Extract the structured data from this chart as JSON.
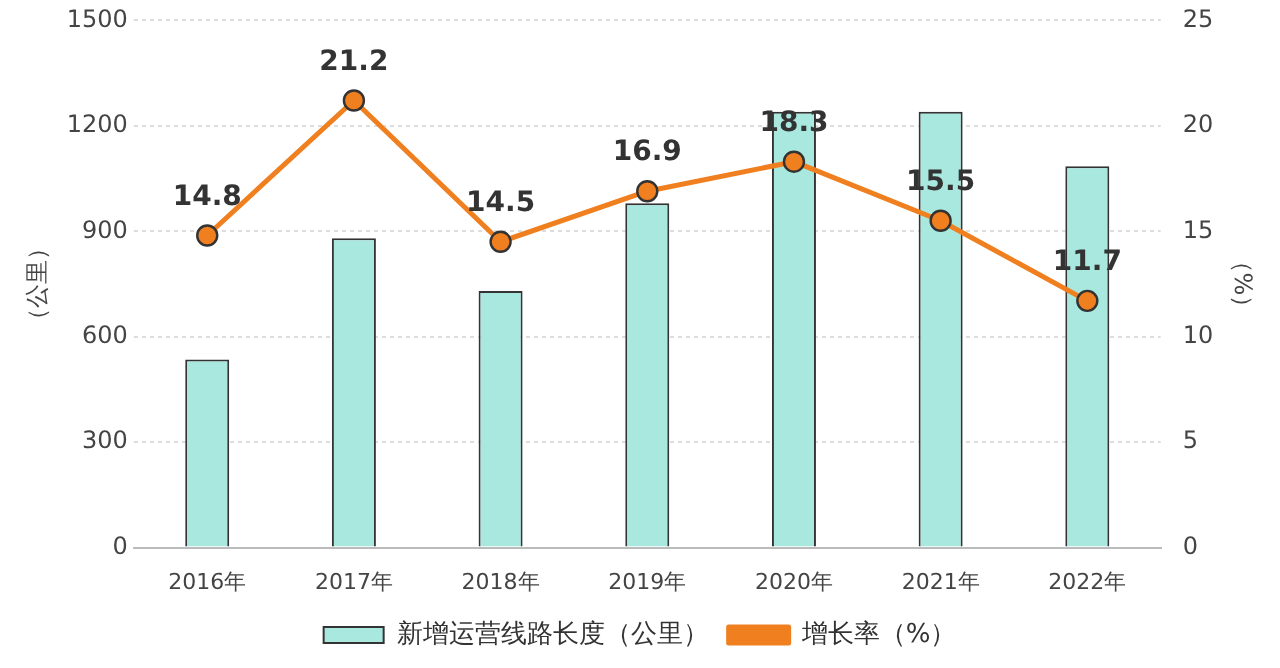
{
  "chart_data": {
    "type": "bar",
    "categories": [
      "2016年",
      "2017年",
      "2018年",
      "2019年",
      "2020年",
      "2021年",
      "2022年"
    ],
    "ylabel": "（公里）",
    "y2label": "（%）",
    "series": [
      {
        "name": "新增运营线路长度（公里）",
        "color": "#a8e8df",
        "values": [
          535,
          880,
          730,
          980,
          1240,
          1240,
          1085
        ]
      },
      {
        "name": "增长率（%）",
        "type": "line",
        "axis": "y2",
        "color": "#f07f1f",
        "values": [
          14.8,
          21.2,
          14.5,
          16.9,
          18.3,
          15.5,
          11.7
        ],
        "value_labels": [
          "14.8",
          "21.2",
          "14.5",
          "16.9",
          "18.3",
          "15.5",
          "11.7"
        ]
      }
    ],
    "ylim": [
      0,
      1500
    ],
    "yticks": [
      0,
      300,
      600,
      900,
      1200,
      1500
    ],
    "y2lim": [
      0,
      25
    ],
    "y2ticks": [
      0,
      5,
      10,
      15,
      20,
      25
    ],
    "grid": "y",
    "legend": "bottom",
    "marker": "circle",
    "line_style": "solid"
  }
}
